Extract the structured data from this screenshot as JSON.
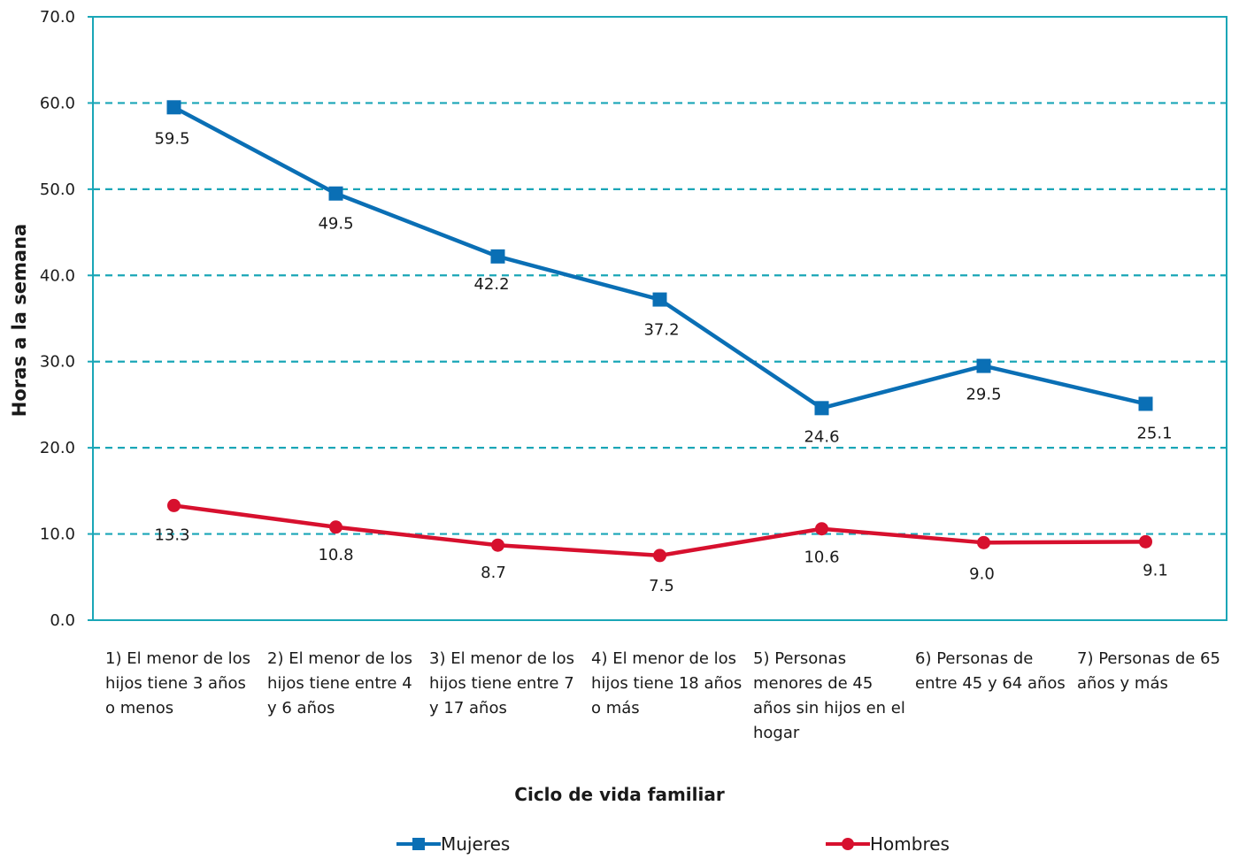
{
  "chart_data": {
    "type": "line",
    "title": "",
    "xlabel": "Ciclo de vida familiar",
    "ylabel": "Horas a la semana",
    "ylim": [
      0,
      70
    ],
    "yticks": [
      "0.0",
      "10.0",
      "20.0",
      "30.0",
      "40.0",
      "50.0",
      "60.0",
      "70.0"
    ],
    "grid": "horizontal dashed",
    "legend_position": "bottom",
    "categories": [
      "1) El menor de los hijos tiene 3 años o menos",
      "2) El menor de los hijos tiene entre 4 y 6 años",
      "3) El menor de los hijos tiene entre 7 y 17 años",
      "4) El menor de los hijos tiene 18 años o más",
      "5) Personas menores de 45 años sin hijos en el hogar",
      "6) Personas de entre 45 y 64 años",
      "7) Personas de 65 años y más"
    ],
    "series": [
      {
        "name": "Mujeres",
        "color": "#0a6fb5",
        "marker": "square",
        "values": [
          59.5,
          49.5,
          42.2,
          37.2,
          24.6,
          29.5,
          25.1
        ],
        "labels": [
          "59.5",
          "49.5",
          "42.2",
          "37.2",
          "24.6",
          "29.5",
          "25.1"
        ]
      },
      {
        "name": "Hombres",
        "color": "#d7102e",
        "marker": "circle",
        "values": [
          13.3,
          10.8,
          8.7,
          7.5,
          10.6,
          9.0,
          9.1
        ],
        "labels": [
          "13.3",
          "10.8",
          "8.7",
          "7.5",
          "10.6",
          "9.0",
          "9.1"
        ]
      }
    ],
    "colors": {
      "axis": "#1aa6b7",
      "grid": "#1aa6b7"
    }
  }
}
